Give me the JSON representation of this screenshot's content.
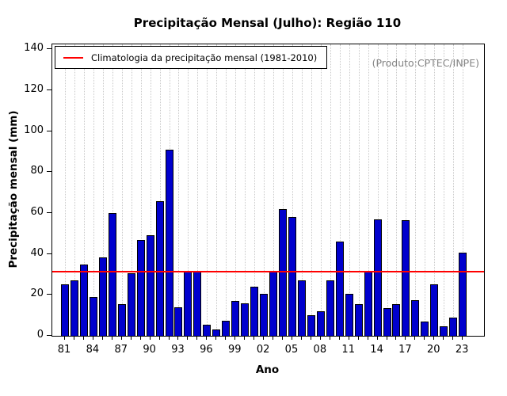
{
  "title": "Precipitação Mensal (Julho): Região 110",
  "source_note": "(Produto:CPTEC/INPE)",
  "legend": {
    "label": "Climatologia da precipitação mensal (1981-2010)"
  },
  "colors": {
    "bar": "#0000CD",
    "bar_border": "#000000",
    "climatology_line": "#FF0000",
    "grid": "#c9c9c9",
    "note_text": "#848484"
  },
  "chart_data": {
    "type": "bar",
    "title": "Precipitação Mensal (Julho): Região 110",
    "xlabel": "Ano",
    "ylabel": "Precipitação mensal (mm)",
    "ylim": [
      0,
      140
    ],
    "yticks": [
      0,
      20,
      40,
      60,
      80,
      100,
      120,
      140
    ],
    "grid": "vertical-dotted",
    "legend_position": "top-left",
    "categories": [
      "81",
      "82",
      "83",
      "84",
      "85",
      "86",
      "87",
      "88",
      "89",
      "90",
      "91",
      "92",
      "93",
      "94",
      "95",
      "96",
      "97",
      "98",
      "99",
      "00",
      "01",
      "02",
      "03",
      "04",
      "05",
      "06",
      "07",
      "08",
      "09",
      "10",
      "11",
      "12",
      "13",
      "14",
      "15",
      "16",
      "17",
      "18",
      "19",
      "20",
      "21",
      "22",
      "23"
    ],
    "xtick_label_every": 3,
    "values": [
      25,
      27,
      35,
      19,
      38.5,
      60,
      15.5,
      30.5,
      47,
      49,
      66,
      91,
      14,
      31.3,
      31.3,
      5.5,
      3,
      7.5,
      17,
      16,
      24,
      20.5,
      31.3,
      62,
      58,
      27,
      10,
      12,
      27,
      46,
      20.5,
      15.5,
      31.3,
      57,
      13.5,
      15.5,
      56.5,
      17.5,
      7,
      25,
      4.5,
      9,
      40.5
    ],
    "climatology_value": 31.3
  }
}
